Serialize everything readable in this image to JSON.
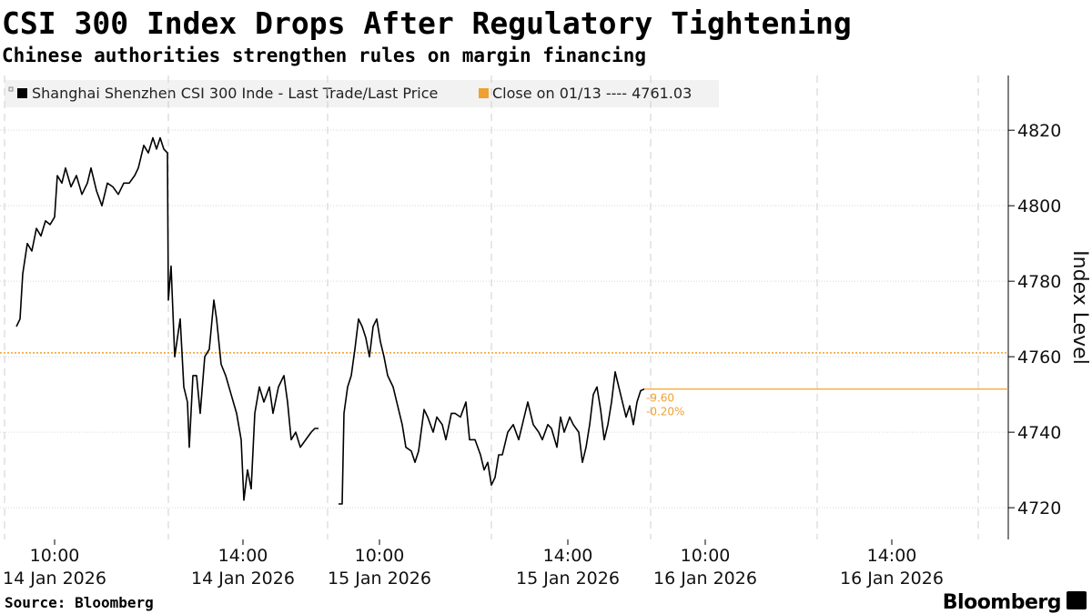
{
  "chart_data": {
    "type": "line",
    "title": "CSI 300 Index Drops After Regulatory Tightening",
    "subtitle": "Chinese authorities strengthen rules on margin financing",
    "y_axis_label": "Index Level",
    "source": "Source: Bloomberg",
    "brand": "Bloomberg",
    "x": [
      18,
      22,
      25,
      30,
      35,
      40,
      45,
      50,
      55,
      60,
      63,
      68,
      72,
      78,
      84,
      90,
      96,
      100,
      106,
      112,
      118,
      124,
      130,
      136,
      142,
      148,
      152,
      158,
      163,
      168,
      172,
      176,
      180,
      184,
      185,
      188,
      192,
      198,
      202,
      206,
      208,
      212,
      216,
      220,
      225,
      230,
      235,
      238,
      243,
      248,
      254,
      260,
      265,
      268,
      272,
      276,
      280,
      285,
      290,
      296,
      300,
      306,
      312,
      316,
      320,
      325,
      330,
      336,
      342,
      346,
      350,
      361,
      372,
      376,
      378,
      382,
      386,
      390,
      394,
      398,
      402,
      406,
      410,
      414,
      418,
      422,
      426,
      432,
      436,
      442,
      446,
      452,
      456,
      460,
      466,
      470,
      476,
      480,
      486,
      490,
      496,
      500,
      506,
      512,
      516,
      522,
      528,
      532,
      536,
      540,
      544,
      548,
      552,
      558,
      564,
      570,
      576,
      580,
      586,
      592,
      596,
      602,
      606,
      612,
      616,
      620,
      626,
      630,
      636,
      640,
      644,
      648,
      652,
      656,
      660,
      664,
      668,
      672,
      676,
      680,
      684,
      688,
      692,
      696,
      700,
      704,
      708
    ],
    "series": [
      {
        "name": "Shanghai Shenzhen CSI 300 Inde - Last Trade/Last Price",
        "color": "#000000",
        "values": [
          4768,
          4770,
          4782,
          4790,
          4788,
          4794,
          4792,
          4796,
          4795,
          4797,
          4808,
          4806,
          4810,
          4805,
          4808,
          4803,
          4806,
          4810,
          4804,
          4800,
          4806,
          4805,
          4803,
          4806,
          4806,
          4808,
          4810,
          4816,
          4814,
          4818,
          4815,
          4818,
          4815,
          4814,
          4775,
          4784,
          4760,
          4770,
          4752,
          4748,
          4736,
          4755,
          4755,
          4745,
          4760,
          4762,
          4775,
          4770,
          4758,
          4755,
          4750,
          4745,
          4738,
          4722,
          4730,
          4725,
          4745,
          4752,
          4748,
          4752,
          4745,
          4752,
          4755,
          4748,
          4738,
          4740,
          4736,
          4738,
          4740,
          4741,
          4741,
          null,
          4721,
          4721,
          4745,
          4752,
          4755,
          4762,
          4770,
          4768,
          4765,
          4760,
          4768,
          4770,
          4764,
          4760,
          4755,
          4752,
          4748,
          4742,
          4736,
          4735,
          4732,
          4735,
          4746,
          4744,
          4740,
          4744,
          4742,
          4738,
          4745,
          4745,
          4744,
          4748,
          4738,
          4738,
          4734,
          4730,
          4732,
          4726,
          4728,
          4734,
          4734,
          4740,
          4742,
          4738,
          4744,
          4748,
          4742,
          4740,
          4738,
          4742,
          4741,
          4736,
          4744,
          4740,
          4744,
          4742,
          4740,
          4732,
          4736,
          4742,
          4750,
          4752,
          4746,
          4738,
          4742,
          4748,
          4756,
          4752,
          4748,
          4744,
          4747,
          4742,
          4748,
          4751,
          4751.43
        ]
      }
    ],
    "reference_line": {
      "label": "Close on 01/13 ----",
      "value": 4761.03,
      "color": "#f0a030"
    },
    "annotations": [
      "-9.60",
      "-0.20%"
    ],
    "annotation_color": "#f0a030",
    "xlim": [
      0,
      1108
    ],
    "xticks": [
      {
        "value": 60,
        "label": [
          "10:00",
          "14 Jan 2026"
        ]
      },
      {
        "value": 267,
        "label": [
          "14:00",
          "14 Jan 2026"
        ]
      },
      {
        "value": 417,
        "label": [
          "10:00",
          "15 Jan 2026"
        ]
      },
      {
        "value": 624,
        "label": [
          "14:00",
          "15 Jan 2026"
        ]
      },
      {
        "value": 775,
        "label": [
          "10:00",
          "16 Jan 2026"
        ]
      },
      {
        "value": 980,
        "label": [
          "14:00",
          "16 Jan 2026"
        ]
      }
    ],
    "xgrid": [
      5,
      185,
      360,
      540,
      715,
      898,
      1075
    ],
    "ylim": [
      4711.6,
      4834.5
    ],
    "yticks": [
      4720,
      4740,
      4760,
      4780,
      4800,
      4820
    ],
    "grid": true
  }
}
